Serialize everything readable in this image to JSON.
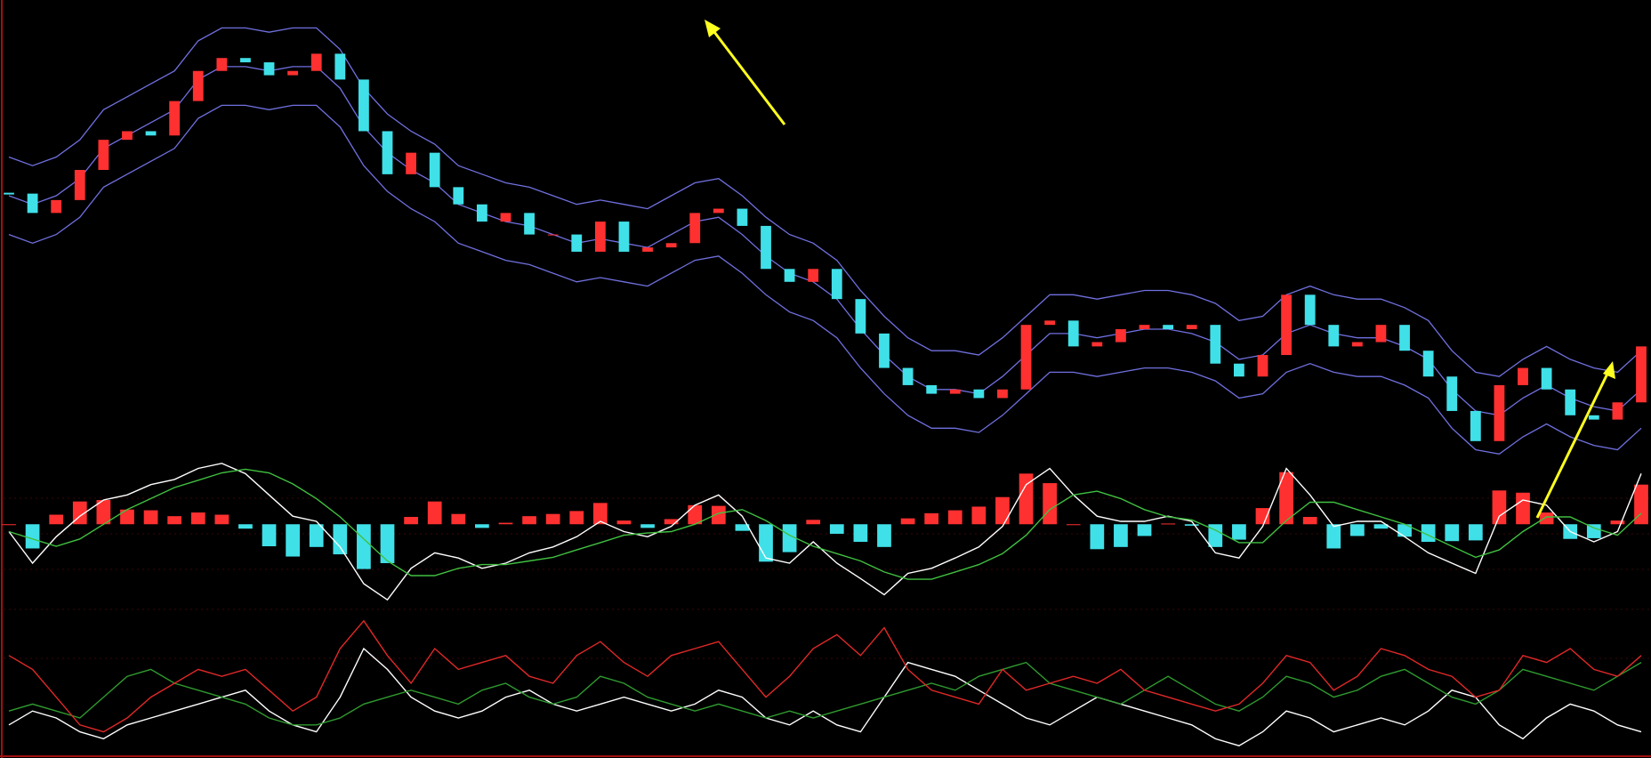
{
  "chart_data": [
    {
      "type": "candlestick",
      "up_color": "#ff3030",
      "down_color": "#40e0e8",
      "ylim": [
        0,
        105
      ],
      "values": [
        62.5,
        58,
        61,
        68,
        75,
        77,
        76,
        84,
        91,
        94,
        93,
        90,
        91,
        95,
        89,
        77,
        67,
        72,
        64,
        60,
        56,
        58,
        53,
        53,
        49,
        56,
        49,
        50,
        51,
        58,
        59,
        55,
        45,
        42,
        45,
        38,
        30,
        22,
        18,
        16,
        17,
        15,
        17,
        32,
        33,
        27,
        28,
        31,
        32,
        31,
        32,
        23,
        20,
        25,
        39,
        32,
        27,
        28,
        32,
        26,
        20,
        12,
        5,
        18,
        22,
        17,
        11,
        10,
        14,
        27
      ],
      "bands": [
        {
          "color": "#7070e0",
          "values": [
            71,
            69,
            71,
            75,
            82,
            85,
            88,
            91,
            98,
            101,
            101,
            100,
            101,
            101,
            96,
            87,
            81,
            77,
            74,
            69,
            67,
            65,
            64,
            62,
            60,
            61,
            60,
            59,
            62,
            65,
            66,
            62,
            57,
            53,
            51,
            47,
            40,
            34,
            29,
            26,
            26,
            25,
            29,
            34,
            39,
            39,
            38,
            39,
            40,
            40,
            39,
            37,
            33,
            34,
            39,
            41,
            39,
            38,
            38,
            36,
            33,
            26,
            21,
            20,
            24,
            27,
            24,
            22,
            21,
            26
          ]
        },
        {
          "color": "#7070e0",
          "values": [
            62,
            60,
            62,
            66,
            73,
            76,
            79,
            82,
            89,
            92,
            92,
            91,
            92,
            92,
            87,
            78,
            72,
            68,
            65,
            60,
            58,
            56,
            55,
            53,
            51,
            52,
            51,
            50,
            53,
            56,
            57,
            53,
            48,
            44,
            42,
            38,
            31,
            25,
            20,
            17,
            17,
            16,
            20,
            25,
            30,
            30,
            29,
            30,
            31,
            31,
            30,
            28,
            24,
            25,
            30,
            32,
            30,
            29,
            29,
            27,
            24,
            17,
            12,
            11,
            15,
            18,
            15,
            13,
            12,
            17
          ]
        },
        {
          "color": "#7070e0",
          "values": [
            53,
            51,
            53,
            57,
            64,
            67,
            70,
            73,
            80,
            83,
            83,
            82,
            83,
            83,
            78,
            69,
            63,
            59,
            56,
            51,
            49,
            47,
            46,
            44,
            42,
            43,
            42,
            41,
            44,
            47,
            48,
            44,
            39,
            35,
            33,
            29,
            22,
            16,
            11,
            8,
            8,
            7,
            11,
            16,
            21,
            21,
            20,
            21,
            22,
            22,
            21,
            19,
            15,
            16,
            21,
            23,
            21,
            20,
            20,
            18,
            15,
            8,
            3,
            2,
            6,
            9,
            6,
            4,
            3,
            8
          ]
        }
      ]
    },
    {
      "type": "macd",
      "ylim": [
        -11,
        9
      ],
      "histogram": {
        "up_color": "#ff3030",
        "down_color": "#40e0e8",
        "values": [
          0,
          -3.3,
          1.3,
          3.1,
          3.3,
          2,
          1.9,
          1.1,
          1.6,
          1.3,
          -0.6,
          -3,
          -4.4,
          -3.1,
          -4.1,
          -6.1,
          -5.3,
          1,
          3.1,
          1.4,
          -0.5,
          0.2,
          1.1,
          1.4,
          1.8,
          2.9,
          0.5,
          -0.5,
          0.7,
          2.6,
          2.5,
          -0.9,
          -5.1,
          -3.8,
          0.6,
          -1.3,
          -2.4,
          -3.1,
          0.8,
          1.5,
          1.9,
          2.4,
          3.7,
          6.9,
          5.6,
          0,
          -3.4,
          -3.1,
          -1.6,
          0.1,
          -0.2,
          -3.1,
          -2.1,
          2.2,
          7.1,
          1,
          -3.3,
          -1.6,
          -0.6,
          -1.7,
          -2.4,
          -2.3,
          -2.2,
          4.6,
          4.3,
          1.6,
          -2,
          -1.9,
          0.5,
          5.4
        ]
      },
      "series": [
        {
          "color": "#ffffff",
          "values": [
            -1,
            -5.3,
            -1.7,
            1.1,
            3.3,
            4,
            5.4,
            6.1,
            7.6,
            8.3,
            6.9,
            4,
            1.1,
            0.4,
            -3.1,
            -8.1,
            -10.3,
            -6,
            -3.9,
            -4.6,
            -6,
            -5.3,
            -3.9,
            -3.1,
            -1.7,
            0.4,
            -1,
            -1.7,
            -0.3,
            2.6,
            4,
            1.1,
            -4.6,
            -5.3,
            -2.4,
            -5.3,
            -7.4,
            -9.6,
            -6.7,
            -6,
            -4.6,
            -3.1,
            -0.3,
            5.4,
            7.6,
            4,
            1.1,
            0.4,
            0.4,
            1.1,
            0.4,
            -3.9,
            -4.6,
            -0.3,
            7.6,
            4,
            -0.3,
            0.4,
            0.4,
            -1.7,
            -3.9,
            -5.3,
            -6.7,
            1.1,
            3.3,
            2.6,
            -1,
            -2.4,
            -1,
            6.9
          ]
        },
        {
          "color": "#40c040",
          "values": [
            -1,
            -2,
            -3,
            -2,
            0,
            2,
            3.5,
            5,
            6,
            7,
            7.5,
            7,
            5.5,
            3.5,
            1,
            -2,
            -5,
            -7,
            -7,
            -6,
            -5.5,
            -5.5,
            -5,
            -4.5,
            -3.5,
            -2.5,
            -1.5,
            -1.2,
            -1,
            0,
            1.5,
            2,
            0.5,
            -1.5,
            -3,
            -4,
            -5,
            -6.5,
            -7.5,
            -7.5,
            -6.5,
            -5.5,
            -4,
            -1.5,
            2,
            4,
            4.5,
            3.5,
            2,
            1,
            0.6,
            -0.8,
            -2.5,
            -2.5,
            0.5,
            3,
            3,
            2,
            1,
            0,
            -1.5,
            -3,
            -4.5,
            -3.5,
            -1,
            1,
            1,
            -0.5,
            -1.5,
            1.5
          ]
        }
      ]
    },
    {
      "type": "line",
      "ylim": [
        0,
        100
      ],
      "series": [
        {
          "color": "#ffffff",
          "values": [
            20,
            30,
            25,
            15,
            10,
            20,
            25,
            30,
            35,
            40,
            45,
            30,
            20,
            15,
            40,
            75,
            60,
            40,
            30,
            25,
            30,
            40,
            45,
            35,
            30,
            35,
            40,
            35,
            30,
            35,
            45,
            40,
            25,
            20,
            30,
            20,
            15,
            40,
            65,
            60,
            55,
            45,
            35,
            25,
            20,
            30,
            40,
            35,
            30,
            25,
            20,
            10,
            5,
            15,
            30,
            25,
            15,
            20,
            25,
            20,
            30,
            45,
            40,
            20,
            10,
            25,
            35,
            30,
            20,
            15
          ]
        },
        {
          "color": "#2f9a2f",
          "values": [
            30,
            35,
            30,
            25,
            40,
            55,
            60,
            50,
            45,
            40,
            35,
            25,
            20,
            20,
            25,
            35,
            40,
            45,
            40,
            35,
            45,
            50,
            40,
            35,
            40,
            55,
            50,
            40,
            35,
            30,
            35,
            30,
            25,
            30,
            25,
            30,
            35,
            40,
            45,
            50,
            45,
            55,
            60,
            65,
            50,
            45,
            40,
            35,
            45,
            55,
            45,
            35,
            30,
            40,
            55,
            50,
            40,
            45,
            55,
            60,
            50,
            40,
            35,
            45,
            60,
            55,
            50,
            45,
            55,
            65
          ]
        },
        {
          "color": "#e02828",
          "values": [
            70,
            60,
            40,
            20,
            15,
            25,
            40,
            50,
            60,
            55,
            60,
            45,
            30,
            40,
            75,
            95,
            70,
            50,
            75,
            60,
            65,
            70,
            55,
            50,
            70,
            80,
            65,
            55,
            70,
            75,
            80,
            60,
            40,
            55,
            75,
            85,
            70,
            90,
            60,
            45,
            40,
            35,
            60,
            45,
            50,
            55,
            50,
            60,
            45,
            40,
            35,
            30,
            35,
            50,
            70,
            65,
            45,
            55,
            75,
            70,
            60,
            55,
            40,
            45,
            70,
            65,
            75,
            60,
            55,
            70
          ]
        }
      ]
    }
  ]
}
